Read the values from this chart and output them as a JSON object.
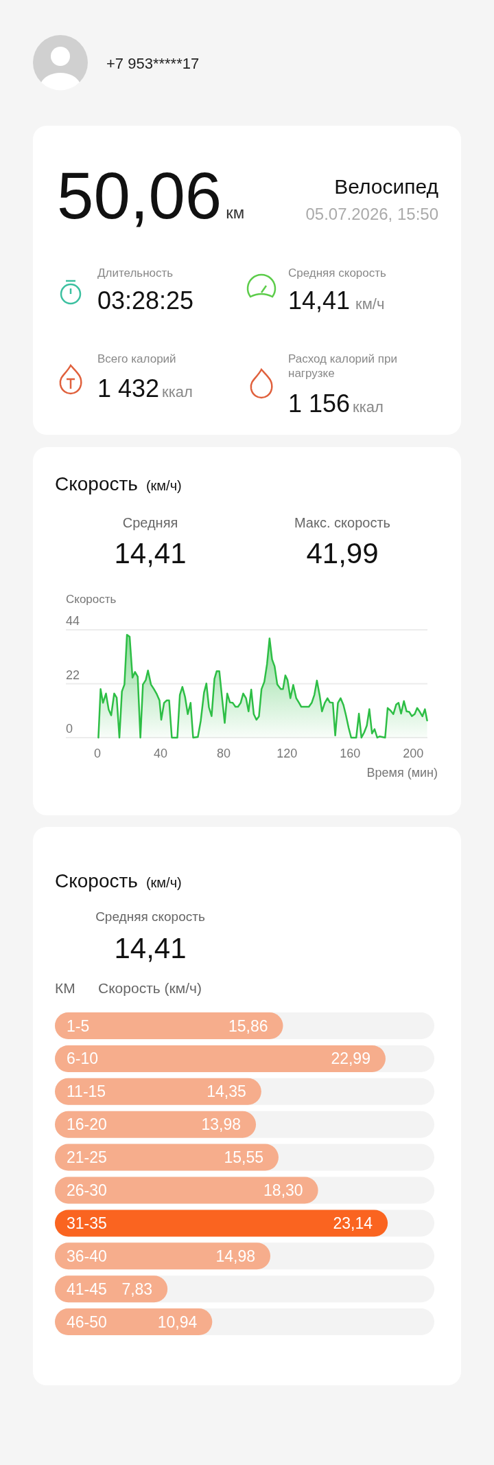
{
  "chart_data": [
    {
      "type": "other",
      "annotations": [
        "+7 953*****17",
        "50,06",
        "км",
        "Велосипед",
        "05.07.2026, 15:50",
        "Длительность",
        "03:28:25",
        "Средняя скорость",
        "14,41",
        "км/ч",
        "Всего калорий",
        "1 432",
        "ккал",
        "Расход калорий при нагрузке",
        "1 156",
        "ккал"
      ]
    },
    {
      "type": "area",
      "title": "Скорость",
      "subtitle": "(км/ч)",
      "ylabel": "Скорость",
      "xlabel": "Время (мин)",
      "annotations": [
        "Средняя",
        "14,41",
        "Макс. скорость",
        "41,99"
      ],
      "color": "#2dbe45",
      "grid": "y",
      "xlim": [
        -20,
        209
      ],
      "ylim": [
        0,
        44
      ],
      "xticks": [
        0,
        40,
        80,
        120,
        160,
        200
      ],
      "yticks": [
        0,
        22,
        44
      ],
      "x": [
        0.6,
        2,
        3.5,
        5.4,
        7.1,
        8.7,
        10.6,
        12.2,
        13.9,
        15.5,
        17.1,
        18.7,
        20.4,
        22.2,
        23.8,
        25.5,
        27.2,
        28.8,
        30.6,
        32,
        33.9,
        35.8,
        37.4,
        39.3,
        40.4,
        42.2,
        43.9,
        45.4,
        47.1,
        50.6,
        52.2,
        53.8,
        55.5,
        57.2,
        59,
        60.6,
        63.6,
        65.4,
        67.5,
        69,
        70.6,
        72.3,
        74.1,
        75.5,
        77.2,
        78.8,
        80.6,
        82.2,
        83.9,
        85.7,
        87.4,
        89,
        90.7,
        92.3,
        94.1,
        95.7,
        97.4,
        99,
        100.7,
        102.3,
        103.9,
        105.7,
        107.4,
        109,
        110.6,
        112.2,
        113.9,
        116.1,
        117.5,
        119,
        120.4,
        122.2,
        124,
        125.9,
        127.7,
        129.1,
        133.9,
        135.7,
        137.4,
        139,
        140.8,
        142.2,
        144,
        145.7,
        147.2,
        149.1,
        150.6,
        152.3,
        154,
        155.8,
        157.4,
        159.1,
        160.7,
        163.9,
        165.6,
        167.2,
        168.9,
        170.6,
        172.2,
        173.9,
        175.5,
        177.2,
        178.8,
        182.2,
        183.8,
        185.7,
        187.4,
        189.2,
        190.7,
        192.3,
        194.1,
        195.8,
        197.5,
        199.1,
        200.9,
        202.5,
        204.2,
        205.8,
        207.4,
        208.8
      ],
      "values": [
        0,
        19.8,
        14.2,
        18,
        11.5,
        9.1,
        18,
        16.3,
        0,
        18.9,
        21.7,
        42,
        41.2,
        24.5,
        26.8,
        24.9,
        0,
        21.7,
        23.5,
        27.4,
        21.7,
        19.8,
        18,
        15.2,
        7.3,
        14.2,
        15.2,
        15.2,
        0,
        0,
        17.5,
        20.7,
        16.6,
        9.6,
        14.2,
        0,
        0.3,
        6.8,
        18.4,
        22.1,
        12.4,
        8.8,
        24,
        27.1,
        27.1,
        17,
        6,
        18,
        14.4,
        14.2,
        12.6,
        12.6,
        14.2,
        18,
        16.1,
        10.7,
        19.6,
        9.6,
        7.3,
        8.7,
        19.8,
        22.8,
        30,
        40.5,
        31.9,
        29.1,
        21.7,
        19.8,
        19.8,
        25.4,
        23.5,
        16.1,
        21.5,
        16.1,
        14.2,
        12.6,
        12.6,
        14.2,
        17.5,
        23.3,
        17,
        10.7,
        14.2,
        16.1,
        14.4,
        14.2,
        0.9,
        14.2,
        16.1,
        13.3,
        9.1,
        4,
        0,
        0,
        9.8,
        0,
        2.1,
        4.9,
        11.6,
        1.7,
        3.5,
        0,
        0.5,
        0,
        12.1,
        11,
        9.6,
        13.5,
        14.2,
        9.8,
        14.9,
        10.7,
        10.5,
        8.8,
        9.6,
        12.1,
        10.5,
        8.7,
        11.6,
        7
      ]
    },
    {
      "type": "bar",
      "orientation": "horizontal",
      "title": "Скорость",
      "subtitle": "(км/ч)",
      "annotations": [
        "Средняя скорость",
        "14,41",
        "КМ",
        "Скорость (км/ч)"
      ],
      "categories": [
        "1-5",
        "6-10",
        "11-15",
        "16-20",
        "21-25",
        "26-30",
        "31-35",
        "36-40",
        "41-45",
        "46-50"
      ],
      "values": [
        15.86,
        22.99,
        14.35,
        13.98,
        15.55,
        18.3,
        23.14,
        14.98,
        7.83,
        10.94
      ],
      "value_labels": [
        "15,86",
        "22,99",
        "14,35",
        "13,98",
        "15,55",
        "18,30",
        "23,14",
        "14,98",
        "7,83",
        "10,94"
      ],
      "colors": [
        "#f6ad8c",
        "#f6ad8c",
        "#f6ad8c",
        "#f6ad8c",
        "#f6ad8c",
        "#f6ad8c",
        "#fa6420",
        "#f6ad8c",
        "#f6ad8c",
        "#f6ad8c"
      ]
    }
  ]
}
